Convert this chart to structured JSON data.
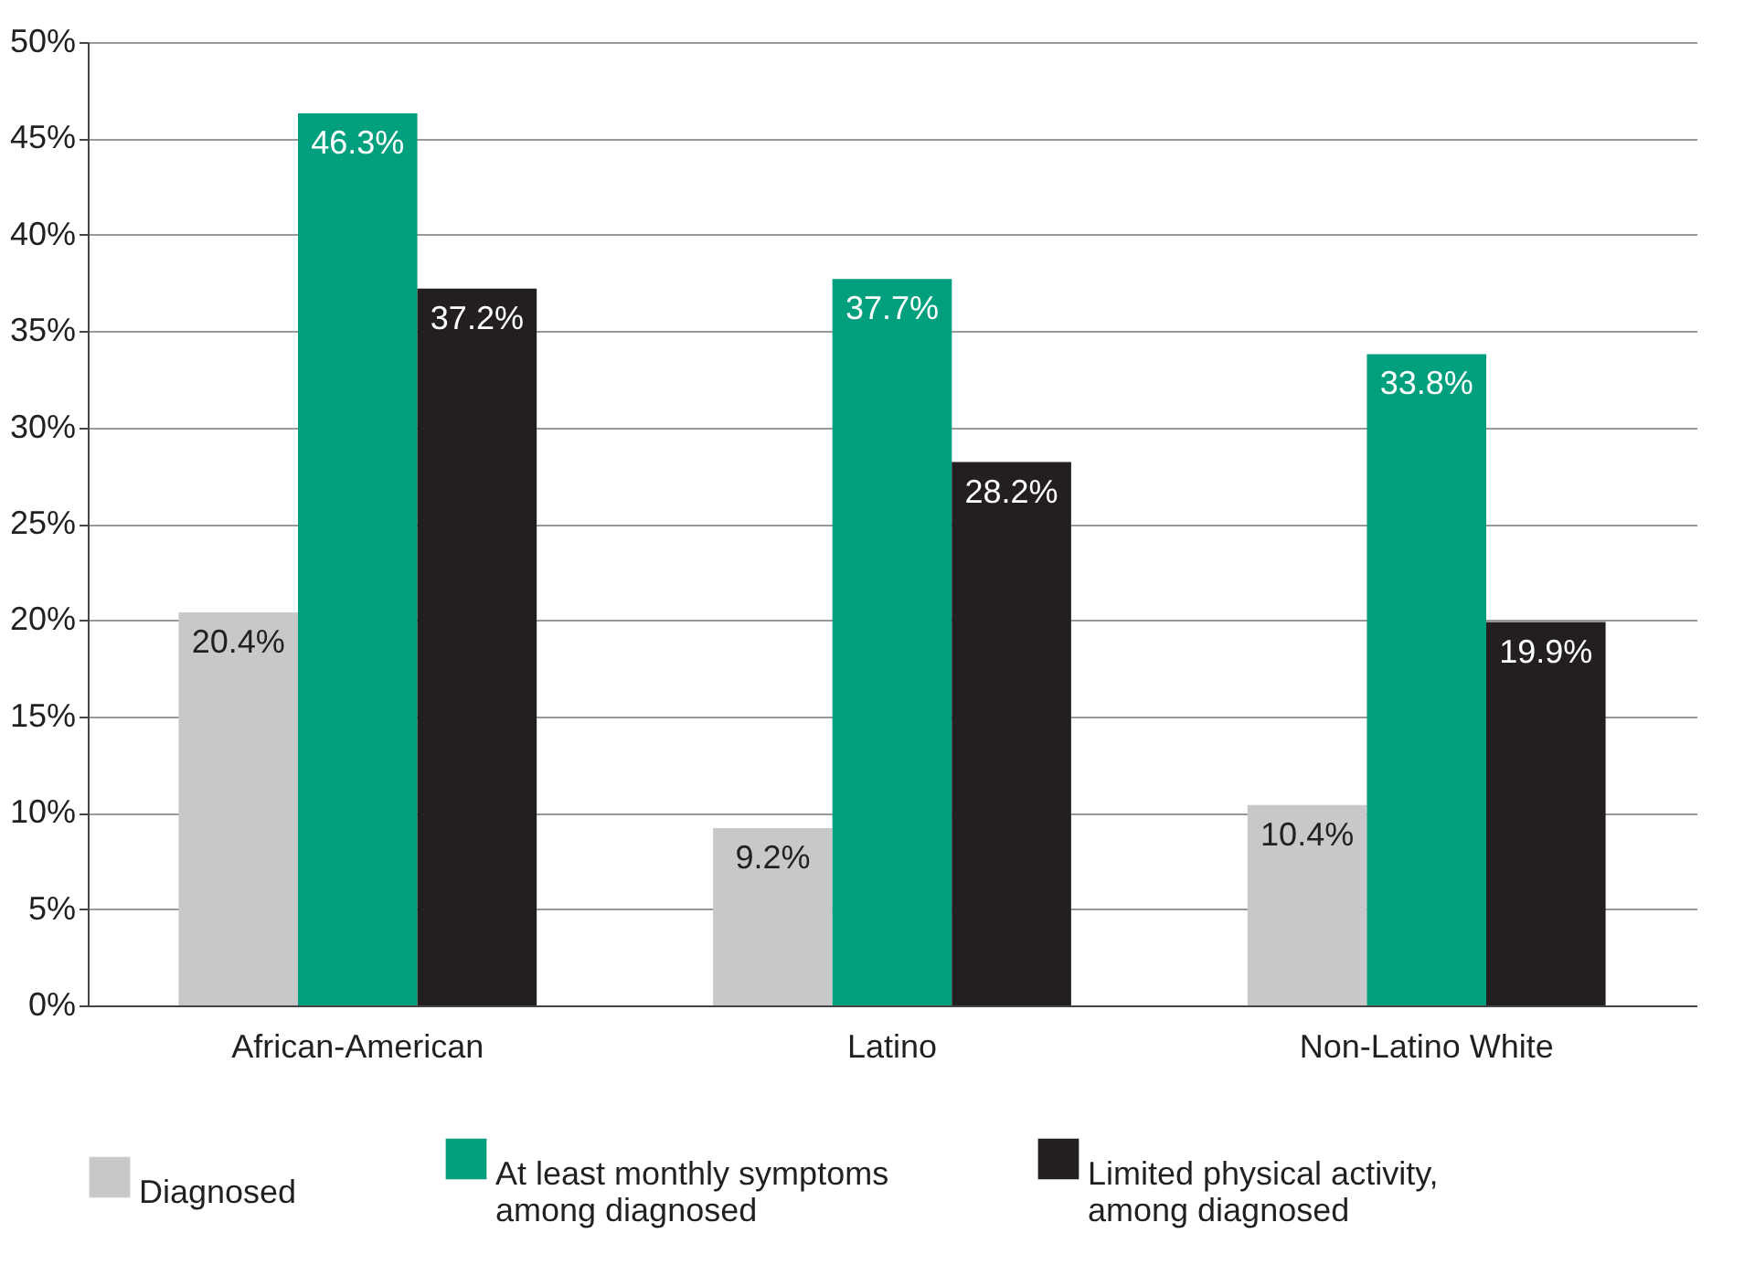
{
  "chart_data": {
    "type": "bar",
    "categories": [
      "African-American",
      "Latino",
      "Non-Latino White"
    ],
    "series": [
      {
        "name": "Diagnosed",
        "color": "#c8c8ca",
        "values": [
          20.4,
          9.2,
          10.4
        ],
        "value_labels": [
          "20.4%",
          "9.2%",
          "10.4%"
        ]
      },
      {
        "name": "At least monthly symptoms among diagnosed",
        "color": "#00a07e",
        "values": [
          46.3,
          37.7,
          33.8
        ],
        "value_labels": [
          "46.3%",
          "37.7%",
          "33.8%"
        ]
      },
      {
        "name": "Limited physical activity, among diagnosed",
        "color": "#231f20",
        "values": [
          37.2,
          28.2,
          19.9
        ],
        "value_labels": [
          "37.2%",
          "28.2%",
          "19.9%"
        ]
      }
    ],
    "ylim": [
      0,
      50
    ],
    "yticks": [
      {
        "value": 0,
        "label": "0%"
      },
      {
        "value": 5,
        "label": "5%"
      },
      {
        "value": 10,
        "label": "10%"
      },
      {
        "value": 15,
        "label": "15%"
      },
      {
        "value": 20,
        "label": "20%"
      },
      {
        "value": 25,
        "label": "25%"
      },
      {
        "value": 30,
        "label": "30%"
      },
      {
        "value": 35,
        "label": "35%"
      },
      {
        "value": 40,
        "label": "40%"
      },
      {
        "value": 45,
        "label": "45%"
      },
      {
        "value": 50,
        "label": "50%"
      }
    ],
    "grid": "y",
    "legend": "bottom"
  }
}
